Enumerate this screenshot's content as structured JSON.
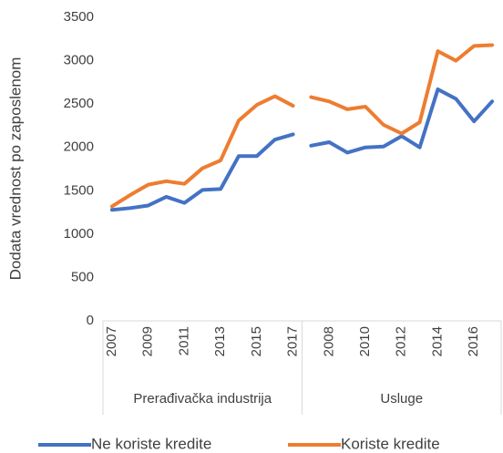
{
  "chart_data": {
    "type": "line",
    "y_label": "Dodata vrednost po zaposlenom",
    "groups": [
      {
        "label": "Prerađivačka industrija",
        "categories": [
          "2007",
          null,
          "2009",
          null,
          "2011",
          null,
          "2013",
          null,
          "2015",
          null,
          "2017"
        ]
      },
      {
        "label": "Usluge",
        "categories": [
          null,
          "2008",
          null,
          "2010",
          null,
          "2012",
          null,
          "2014",
          null,
          "2016",
          null
        ]
      }
    ],
    "series": [
      {
        "name": "Ne koriste kredite",
        "color": "#4472c4",
        "values": [
          1280,
          1300,
          1330,
          1430,
          1360,
          1510,
          1520,
          1900,
          1900,
          2090,
          2150,
          2020,
          2060,
          1940,
          2000,
          2010,
          2130,
          2000,
          2670,
          2560,
          2300,
          2530
        ]
      },
      {
        "name": "Koriste kredite",
        "color": "#ed7d31",
        "values": [
          1320,
          1450,
          1570,
          1610,
          1580,
          1760,
          1850,
          2310,
          2490,
          2590,
          2480,
          2580,
          2530,
          2440,
          2470,
          2260,
          2160,
          2290,
          3110,
          3000,
          3170,
          3180
        ]
      }
    ],
    "ylim": [
      0,
      3500
    ],
    "yticks": [
      0,
      500,
      1000,
      1500,
      2000,
      2500,
      3000,
      3500
    ],
    "grid": false,
    "legend": "bottom"
  }
}
